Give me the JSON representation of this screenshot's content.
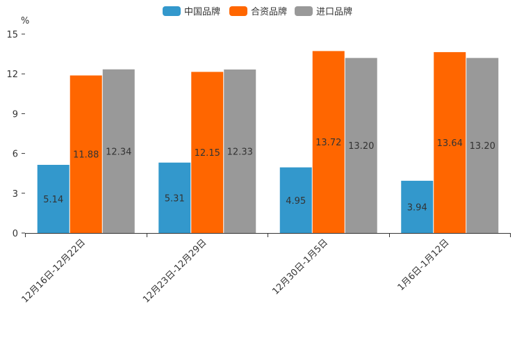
{
  "chart_data": {
    "type": "bar",
    "title": "",
    "xlabel": "",
    "ylabel": "%",
    "ylim": [
      0,
      15
    ],
    "yticks": [
      0,
      3,
      6,
      9,
      12,
      15
    ],
    "grid": false,
    "legend_position": "top-center",
    "categories": [
      "12月16日-12月22日",
      "12月23日-12月29日",
      "12月30日-1月5日",
      "1月6日-1月12日"
    ],
    "series": [
      {
        "name": "中国品牌",
        "color": "#3398cc",
        "values": [
          5.14,
          5.31,
          4.95,
          3.94
        ],
        "labels": [
          "5.14",
          "5.31",
          "4.95",
          "3.94"
        ]
      },
      {
        "name": "合资品牌",
        "color": "#ff6600",
        "values": [
          11.88,
          12.15,
          13.72,
          13.64
        ],
        "labels": [
          "11.88",
          "12.15",
          "13.72",
          "13.64"
        ]
      },
      {
        "name": "进口品牌",
        "color": "#999999",
        "values": [
          12.34,
          12.33,
          13.2,
          13.2
        ],
        "labels": [
          "12.34",
          "12.33",
          "13.20",
          "13.20"
        ]
      }
    ]
  }
}
